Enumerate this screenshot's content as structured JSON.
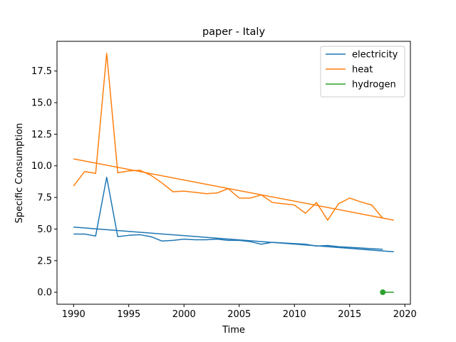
{
  "chart_data": {
    "type": "line",
    "title": "paper - Italy",
    "xlabel": "Time",
    "ylabel": "Specific Consumption",
    "xlim": [
      1988.5,
      2020.5
    ],
    "ylim": [
      -0.95,
      19.85
    ],
    "x_ticks": [
      1990,
      1995,
      2000,
      2005,
      2010,
      2015,
      2020
    ],
    "y_ticks": [
      0.0,
      2.5,
      5.0,
      7.5,
      10.0,
      12.5,
      15.0,
      17.5
    ],
    "y_tick_labels": [
      "0.0",
      "2.5",
      "5.0",
      "7.5",
      "10.0",
      "12.5",
      "15.0",
      "17.5"
    ],
    "grid": false,
    "legend_position": "top-right",
    "legend": [
      "electricity",
      "heat",
      "hydrogen"
    ],
    "series": [
      {
        "name": "electricity",
        "color": "#1f77b4",
        "x": [
          1990,
          1991,
          1992,
          1993,
          1994,
          1995,
          1996,
          1997,
          1998,
          1999,
          2000,
          2001,
          2002,
          2003,
          2004,
          2005,
          2006,
          2007,
          2008,
          2009,
          2010,
          2011,
          2012,
          2013,
          2014,
          2015,
          2016,
          2017,
          2018
        ],
        "y": [
          4.6,
          4.6,
          4.45,
          9.1,
          4.4,
          4.5,
          4.55,
          4.4,
          4.05,
          4.1,
          4.2,
          4.15,
          4.15,
          4.2,
          4.1,
          4.1,
          4.0,
          3.8,
          3.95,
          3.9,
          3.85,
          3.8,
          3.65,
          3.7,
          3.6,
          3.55,
          3.5,
          3.45,
          3.4
        ],
        "trend": {
          "x": [
            1990,
            2019
          ],
          "y": [
            5.15,
            3.2
          ]
        }
      },
      {
        "name": "heat",
        "color": "#ff7f0e",
        "x": [
          1990,
          1991,
          1992,
          1993,
          1994,
          1995,
          1996,
          1997,
          1998,
          1999,
          2000,
          2001,
          2002,
          2003,
          2004,
          2005,
          2006,
          2007,
          2008,
          2009,
          2010,
          2011,
          2012,
          2013,
          2014,
          2015,
          2016,
          2017,
          2018
        ],
        "y": [
          8.4,
          9.55,
          9.4,
          18.9,
          9.45,
          9.6,
          9.65,
          9.25,
          8.65,
          7.95,
          8.0,
          7.9,
          7.8,
          7.85,
          8.2,
          7.45,
          7.45,
          7.7,
          7.1,
          7.0,
          6.9,
          6.25,
          7.1,
          5.7,
          7.0,
          7.45,
          7.15,
          6.9,
          5.85
        ],
        "trend": {
          "x": [
            1990,
            2019
          ],
          "y": [
            10.55,
            5.7
          ]
        }
      },
      {
        "name": "hydrogen",
        "color": "#2ca02c",
        "x": [
          2018,
          2019
        ],
        "y": [
          0.0,
          0.0
        ],
        "markers": [
          {
            "x": 2018,
            "y": 0.0
          }
        ]
      }
    ]
  }
}
